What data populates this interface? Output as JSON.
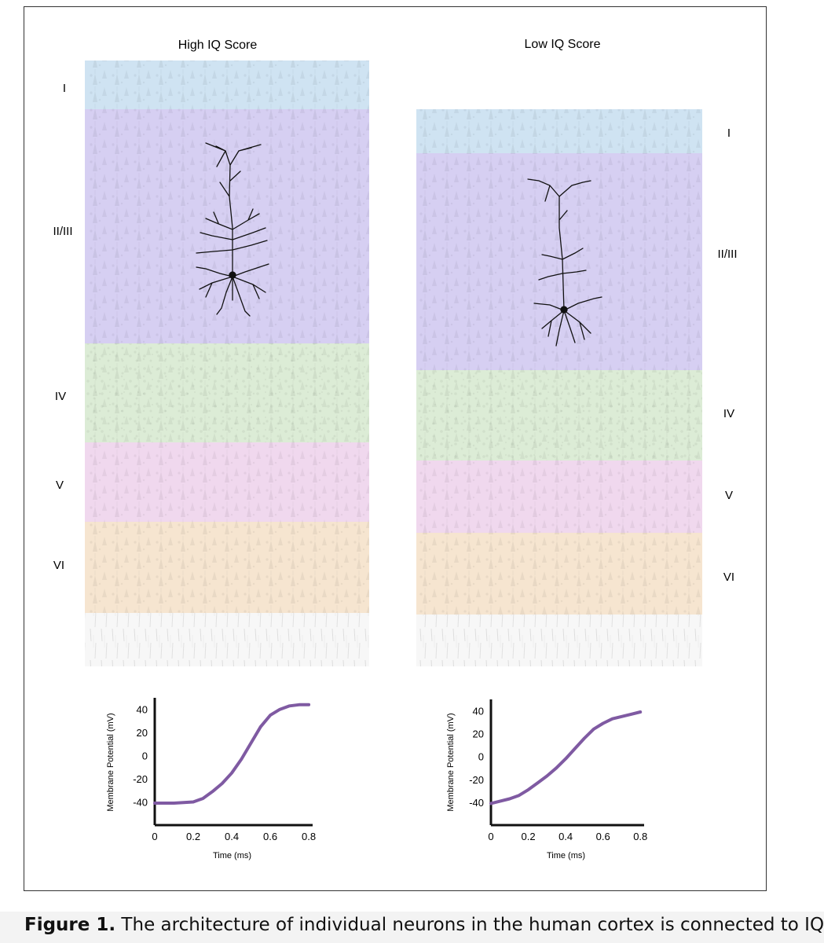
{
  "panels": [
    {
      "title": "High IQ Score",
      "layers": [
        "I",
        "II/III",
        "IV",
        "V",
        "VI"
      ],
      "chart": {
        "type": "line",
        "xlabel": "Time (ms)",
        "ylabel": "Membrane Potential (mV)",
        "xticks": [
          "0",
          "0.2",
          "0.4",
          "0.6",
          "0.8"
        ],
        "yticks": [
          "40",
          "20",
          "0",
          "-20",
          "-40"
        ],
        "xlim": [
          0,
          0.82
        ],
        "ylim": [
          -60,
          50
        ]
      }
    },
    {
      "title": "Low IQ Score",
      "layers": [
        "I",
        "II/III",
        "IV",
        "V",
        "VI"
      ],
      "chart": {
        "type": "line",
        "xlabel": "Time (ms)",
        "ylabel": "Membrane Potential (mV)",
        "xticks": [
          "0",
          "0.2",
          "0.4",
          "0.6",
          "0.8"
        ],
        "yticks": [
          "40",
          "20",
          "0",
          "-20",
          "-40"
        ],
        "xlim": [
          0,
          0.82
        ],
        "ylim": [
          -60,
          50
        ]
      }
    }
  ],
  "chart_data": [
    {
      "type": "line",
      "xlabel": "Time (ms)",
      "ylabel": "Membrane Potential (mV)",
      "xlim": [
        0,
        0.82
      ],
      "ylim": [
        -60,
        50
      ],
      "x": [
        0,
        0.1,
        0.2,
        0.25,
        0.3,
        0.35,
        0.4,
        0.45,
        0.5,
        0.55,
        0.6,
        0.65,
        0.7,
        0.75,
        0.8
      ],
      "values": [
        -41,
        -41,
        -40,
        -37,
        -31,
        -24,
        -15,
        -3,
        11,
        25,
        35,
        40,
        43,
        44,
        44
      ],
      "color": "#7f5aa2"
    },
    {
      "type": "line",
      "xlabel": "Time (ms)",
      "ylabel": "Membrane Potential (mV)",
      "xlim": [
        0,
        0.82
      ],
      "ylim": [
        -60,
        50
      ],
      "x": [
        0,
        0.1,
        0.15,
        0.2,
        0.25,
        0.3,
        0.35,
        0.4,
        0.45,
        0.5,
        0.55,
        0.6,
        0.65,
        0.7,
        0.75,
        0.8
      ],
      "values": [
        -41,
        -37,
        -34,
        -29,
        -23,
        -17,
        -10,
        -2,
        7,
        16,
        24,
        29,
        33,
        35,
        37,
        39
      ],
      "color": "#7f5aa2"
    }
  ],
  "caption": {
    "prefix": "Figure 1.",
    "text": " The architecture of individual neurons in the human cortex is connected to IQ"
  },
  "colors": {
    "layer_I": "#cfe3f2",
    "layer_II_III": "#d6cff2",
    "layer_IV": "#dcecd6",
    "layer_V": "#f0d8ee",
    "layer_VI": "#f6e5d0",
    "white_matter": "#f2f2f2",
    "trace": "#7f5aa2"
  }
}
